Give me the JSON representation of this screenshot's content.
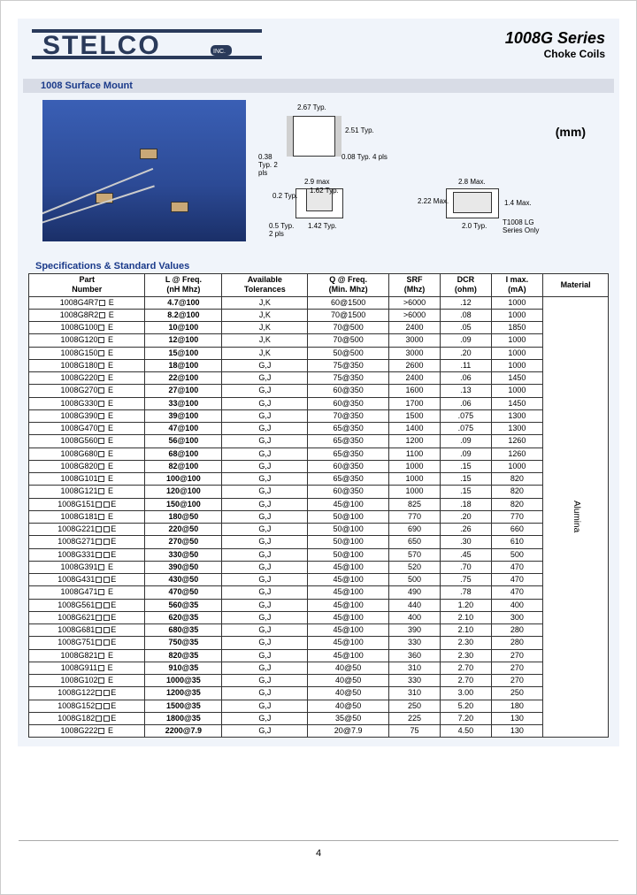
{
  "brand": "STELCO",
  "brand_inc": "INC.",
  "series_title": "1008G Series",
  "series_sub": "Choke Coils",
  "section1": "1008 Surface Mount",
  "section2": "Specifications & Standard Values",
  "mm_label": "(mm)",
  "page_number": "4",
  "dims": {
    "d1": "2.67 Typ.",
    "d2": "2.51 Typ.",
    "d3": "0.38 Typ. 2 pls",
    "d4": "0.08 Typ. 4 pls",
    "d5": "2.9 max",
    "d6": "1.62 Typ.",
    "d7": "0.2 Typ.",
    "d8": "0.5 Typ. 2 pls",
    "d9": "1.42 Typ.",
    "d10": "2.8 Max.",
    "d11": "2.22 Max.",
    "d12": "1.4 Max.",
    "d13": "2.0 Typ.",
    "d14": "T1008 LG Series Only"
  },
  "columns": [
    "Part Number",
    "L @ Freq. (nH Mhz)",
    "Available Tolerances",
    "Q @ Freq. (Min. Mhz)",
    "SRF (Mhz)",
    "DCR (ohm)",
    "I max. (mA)",
    "Material"
  ],
  "material": "Alumina",
  "rows": [
    [
      "1008G4R7□ E",
      "4.7@100",
      "J,K",
      "60@1500",
      ">6000",
      ".12",
      "1000"
    ],
    [
      "1008G8R2□ E",
      "8.2@100",
      "J,K",
      "70@1500",
      ">6000",
      ".08",
      "1000"
    ],
    [
      "1008G100□ E",
      "10@100",
      "J,K",
      "70@500",
      "2400",
      ".05",
      "1850"
    ],
    [
      "1008G120□ E",
      "12@100",
      "J,K",
      "70@500",
      "3000",
      ".09",
      "1000"
    ],
    [
      "1008G150□ E",
      "15@100",
      "J,K",
      "50@500",
      "3000",
      ".20",
      "1000"
    ],
    [
      "1008G180□ E",
      "18@100",
      "G,J",
      "75@350",
      "2600",
      ".11",
      "1000"
    ],
    [
      "1008G220□ E",
      "22@100",
      "G,J",
      "75@350",
      "2400",
      ".06",
      "1450"
    ],
    [
      "1008G270□ E",
      "27@100",
      "G,J",
      "60@350",
      "1600",
      ".13",
      "1000"
    ],
    [
      "1008G330□ E",
      "33@100",
      "G,J",
      "60@350",
      "1700",
      ".06",
      "1450"
    ],
    [
      "1008G390□ E",
      "39@100",
      "G,J",
      "70@350",
      "1500",
      ".075",
      "1300"
    ],
    [
      "1008G470□ E",
      "47@100",
      "G,J",
      "65@350",
      "1400",
      ".075",
      "1300"
    ],
    [
      "1008G560□ E",
      "56@100",
      "G,J",
      "65@350",
      "1200",
      ".09",
      "1260"
    ],
    [
      "1008G680□ E",
      "68@100",
      "G,J",
      "65@350",
      "1100",
      ".09",
      "1260"
    ],
    [
      "1008G820□ E",
      "82@100",
      "G,J",
      "60@350",
      "1000",
      ".15",
      "1000"
    ],
    [
      "1008G101□ E",
      "100@100",
      "G,J",
      "65@350",
      "1000",
      ".15",
      "820"
    ],
    [
      "1008G121□ E",
      "120@100",
      "G,J",
      "60@350",
      "1000",
      ".15",
      "820"
    ],
    [
      "1008G151□□E",
      "150@100",
      "G,J",
      "45@100",
      "825",
      ".18",
      "820"
    ],
    [
      "1008G181□ E",
      "180@50",
      "G,J",
      "50@100",
      "770",
      ".20",
      "770"
    ],
    [
      "1008G221□□E",
      "220@50",
      "G,J",
      "50@100",
      "690",
      ".26",
      "660"
    ],
    [
      "1008G271□□E",
      "270@50",
      "G,J",
      "50@100",
      "650",
      ".30",
      "610"
    ],
    [
      "1008G331□□E",
      "330@50",
      "G,J",
      "50@100",
      "570",
      ".45",
      "500"
    ],
    [
      "1008G391□ E",
      "390@50",
      "G,J",
      "45@100",
      "520",
      ".70",
      "470"
    ],
    [
      "1008G431□□E",
      "430@50",
      "G,J",
      "45@100",
      "500",
      ".75",
      "470"
    ],
    [
      "1008G471□ E",
      "470@50",
      "G,J",
      "45@100",
      "490",
      ".78",
      "470"
    ],
    [
      "1008G561□□E",
      "560@35",
      "G,J",
      "45@100",
      "440",
      "1.20",
      "400"
    ],
    [
      "1008G621□□E",
      "620@35",
      "G,J",
      "45@100",
      "400",
      "2.10",
      "300"
    ],
    [
      "1008G681□□E",
      "680@35",
      "G,J",
      "45@100",
      "390",
      "2.10",
      "280"
    ],
    [
      "1008G751□□E",
      "750@35",
      "G,J",
      "45@100",
      "330",
      "2.30",
      "280"
    ],
    [
      "1008G821□ E",
      "820@35",
      "G,J",
      "45@100",
      "360",
      "2.30",
      "270"
    ],
    [
      "1008G911□ E",
      "910@35",
      "G,J",
      "40@50",
      "310",
      "2.70",
      "270"
    ],
    [
      "1008G102□ E",
      "1000@35",
      "G,J",
      "40@50",
      "330",
      "2.70",
      "270"
    ],
    [
      "1008G122□□E",
      "1200@35",
      "G,J",
      "40@50",
      "310",
      "3.00",
      "250"
    ],
    [
      "1008G152□□E",
      "1500@35",
      "G,J",
      "40@50",
      "250",
      "5.20",
      "180"
    ],
    [
      "1008G182□□E",
      "1800@35",
      "G,J",
      "35@50",
      "225",
      "7.20",
      "130"
    ],
    [
      "1008G222□ E",
      "2200@7.9",
      "G,J",
      "20@7.9",
      "75",
      "4.50",
      "130"
    ]
  ]
}
